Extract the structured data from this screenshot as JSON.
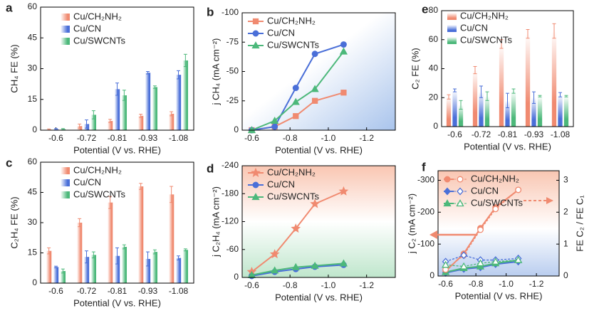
{
  "chart_data": [
    {
      "type": "bar",
      "label": "a",
      "y_label": "CH₄ FE (%)",
      "x_label": "Potential (V vs. RHE)",
      "categories": [
        "-0.6",
        "-0.72",
        "-0.81",
        "-0.93",
        "-1.08"
      ],
      "ylim": [
        0,
        60
      ],
      "yticks": [
        0,
        15,
        30,
        45,
        60
      ],
      "legend": "upper left",
      "series": [
        {
          "name": "Cu/CH₂NH₂",
          "color": "#f08a70",
          "values": [
            0.3,
            2,
            4.5,
            7,
            8
          ],
          "errors": [
            0.3,
            1,
            0.8,
            0.8,
            1
          ]
        },
        {
          "name": "Cu/CN",
          "color": "#4a6fd8",
          "values": [
            0.5,
            3,
            20,
            28,
            27
          ],
          "errors": [
            0.3,
            2,
            3,
            0.6,
            2
          ]
        },
        {
          "name": "Cu/SWCNTs",
          "color": "#4cb87a",
          "values": [
            0.5,
            7.5,
            17,
            21,
            34
          ],
          "errors": [
            0.3,
            2,
            2.5,
            0.6,
            3
          ]
        }
      ]
    },
    {
      "type": "line",
      "label": "b",
      "y_label": "j CH₄ (mA cm⁻²)",
      "x_label": "Potential (V vs. RHE)",
      "x": [
        -0.6,
        -0.72,
        -0.83,
        -0.93,
        -1.08
      ],
      "xlim": [
        -0.55,
        -1.35
      ],
      "xticks": [
        -0.6,
        -0.8,
        {
          "value": -1,
          "label": "-1.0"
        },
        -1.2
      ],
      "ylim": [
        0,
        -100
      ],
      "yticks": [
        0,
        -25,
        -50,
        -75,
        -100
      ],
      "legend": "upper left",
      "series": [
        {
          "name": "Cu/CH₂NH₂",
          "color": "#f08a70",
          "marker": "square",
          "values": [
            0,
            -3,
            -12,
            -25,
            -32
          ]
        },
        {
          "name": "Cu/CN",
          "color": "#4a6fd8",
          "marker": "circle",
          "values": [
            0,
            -3,
            -36,
            -65,
            -73
          ]
        },
        {
          "name": "Cu/SWCNTs",
          "color": "#4cb87a",
          "marker": "triangle",
          "values": [
            0,
            -8,
            -24,
            -35,
            -67
          ]
        }
      ]
    },
    {
      "type": "bar",
      "label": "c",
      "y_label": "C₂H₄ FE (%)",
      "x_label": "Potential (V vs. RHE)",
      "categories": [
        "-0.6",
        "-0.72",
        "-0.81",
        "-0.93",
        "-1.08"
      ],
      "ylim": [
        0,
        60
      ],
      "yticks": [
        0,
        15,
        30,
        45,
        60
      ],
      "legend": "upper left",
      "series": [
        {
          "name": "Cu/CH₂NH₂",
          "color": "#f08a70",
          "values": [
            16,
            30,
            40,
            48,
            44
          ],
          "errors": [
            1.5,
            2,
            3,
            1.5,
            4
          ]
        },
        {
          "name": "Cu/CN",
          "color": "#4a6fd8",
          "values": [
            8,
            13,
            13.5,
            12,
            12.5
          ],
          "errors": [
            0.4,
            3,
            4,
            3.5,
            1
          ]
        },
        {
          "name": "Cu/SWCNTs",
          "color": "#4cb87a",
          "values": [
            6,
            14,
            18,
            15.5,
            16.5
          ],
          "errors": [
            1,
            1.5,
            1,
            1,
            0.5
          ]
        }
      ]
    },
    {
      "type": "line",
      "label": "d",
      "y_label": "j C₂H₄ (mA cm⁻²)",
      "x_label": "Potential (V vs. RHE)",
      "x": [
        -0.6,
        -0.72,
        -0.83,
        -0.93,
        -1.08
      ],
      "xlim": [
        -0.55,
        -1.35
      ],
      "xticks": [
        -0.6,
        -0.8,
        {
          "value": -1,
          "label": "-1.0"
        },
        -1.2
      ],
      "ylim": [
        0,
        -240
      ],
      "yticks": [
        0,
        -60,
        -120,
        -180,
        -240
      ],
      "legend": "upper left",
      "series": [
        {
          "name": "Cu/CH₂NH₂",
          "color": "#f08a70",
          "marker": "star",
          "values": [
            -12,
            -50,
            -105,
            -158,
            -185
          ]
        },
        {
          "name": "Cu/CN",
          "color": "#4a6fd8",
          "marker": "circle",
          "values": [
            -3,
            -12,
            -18,
            -23,
            -27
          ]
        },
        {
          "name": "Cu/SWCNTs",
          "color": "#4cb87a",
          "marker": "triangle",
          "values": [
            -5,
            -15,
            -22,
            -25,
            -30
          ]
        }
      ]
    },
    {
      "type": "bar",
      "label": "e",
      "y_label": "C₂ FE (%)",
      "x_label": "Potential (V vs. RHE)",
      "categories": [
        "-0.6",
        "-0.72",
        "-0.81",
        "-0.93",
        "-1.08"
      ],
      "ylim": [
        0,
        80
      ],
      "yticks": [
        0,
        20,
        40,
        60,
        80
      ],
      "legend": "upper left",
      "series": [
        {
          "name": "Cu/CH₂NH₂",
          "color": "#f08a70",
          "values": [
            20.5,
            39,
            57,
            64,
            66
          ],
          "errors": [
            1.5,
            2.5,
            3,
            3,
            5
          ]
        },
        {
          "name": "Cu/CN",
          "color": "#4a6fd8",
          "values": [
            25,
            24,
            18,
            20,
            22
          ],
          "errors": [
            1,
            4,
            5,
            4,
            1.5
          ]
        },
        {
          "name": "Cu/SWCNTs",
          "color": "#4cb87a",
          "values": [
            15,
            21,
            24.5,
            21,
            21
          ],
          "errors": [
            3,
            3,
            1.5,
            0.5,
            0.5
          ]
        }
      ]
    },
    {
      "type": "line",
      "label": "f",
      "y_label": "j C₂ (mA cm⁻²)",
      "y2_label": "FE C₂ / FE C₁",
      "x_label": "Potential (V vs. RHE)",
      "x": [
        -0.6,
        -0.72,
        -0.83,
        -0.93,
        -1.08
      ],
      "xlim": [
        -0.55,
        -1.35
      ],
      "xticks": [
        -0.6,
        -0.8,
        {
          "value": -1,
          "label": "-1.0"
        },
        -1.2
      ],
      "ylim": [
        0,
        -330
      ],
      "yticks": [
        0,
        -100,
        -200,
        -300
      ],
      "y2lim": [
        0,
        3.3
      ],
      "y2ticks": [
        0,
        1,
        2,
        3
      ],
      "legend": "upper left",
      "series": [
        {
          "name": "Cu/CH₂NH₂",
          "color": "#f08a70",
          "marker": "circle",
          "values": [
            -15,
            -70,
            -150,
            -215,
            -270
          ]
        },
        {
          "name": "Cu/CN",
          "color": "#4a6fd8",
          "marker": "diamond",
          "values": [
            -10,
            -22,
            -27,
            -37,
            -45
          ]
        },
        {
          "name": "Cu/SWCNTs",
          "color": "#4cb87a",
          "marker": "triangle",
          "values": [
            -12,
            -25,
            -30,
            -40,
            -50
          ]
        },
        {
          "color": "#f08a70",
          "marker": "circle",
          "axis": "y2",
          "dashed": true,
          "values": [
            0.2,
            0.65,
            1.45,
            2.1,
            2.7
          ]
        },
        {
          "color": "#4a6fd8",
          "marker": "diamond",
          "axis": "y2",
          "dashed": true,
          "values": [
            0.45,
            0.65,
            0.5,
            0.5,
            0.55
          ]
        },
        {
          "color": "#4cb87a",
          "marker": "triangle",
          "axis": "y2",
          "dashed": true,
          "values": [
            0.35,
            0.3,
            0.4,
            0.45,
            0.5
          ]
        }
      ]
    }
  ]
}
